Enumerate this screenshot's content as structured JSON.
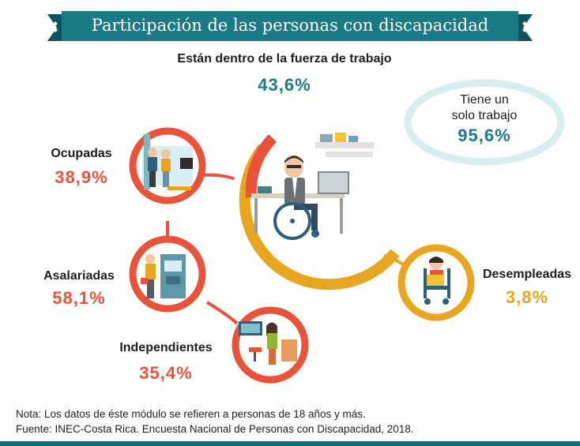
{
  "banner": {
    "title": "Participación de las personas con discapacidad"
  },
  "labor_force": {
    "label": "Están dentro de la fuerza de trabajo",
    "value": "43,6%"
  },
  "single_job": {
    "label_line1": "Tiene un",
    "label_line2": "solo trabajo",
    "value": "95,6%"
  },
  "employed": {
    "label": "Ocupadas",
    "value": "38,9%"
  },
  "salaried": {
    "label": "Asalariadas",
    "value": "58,1%"
  },
  "independent": {
    "label": "Independientes",
    "value": "35,4%"
  },
  "unemployed": {
    "label": "Desempleadas",
    "value": "3,8%"
  },
  "footer": {
    "note": "Nota: Los datos de éste módulo se refieren a personas de 18 años y más.",
    "source": "Fuente: INEC-Costa Rica. Encuesta Nacional de Personas con Discapacidad, 2018."
  },
  "colors": {
    "teal": "#1a7a86",
    "red": "#e8533a",
    "yellow": "#e8a620",
    "banner_bg": "#0f6e7d"
  }
}
